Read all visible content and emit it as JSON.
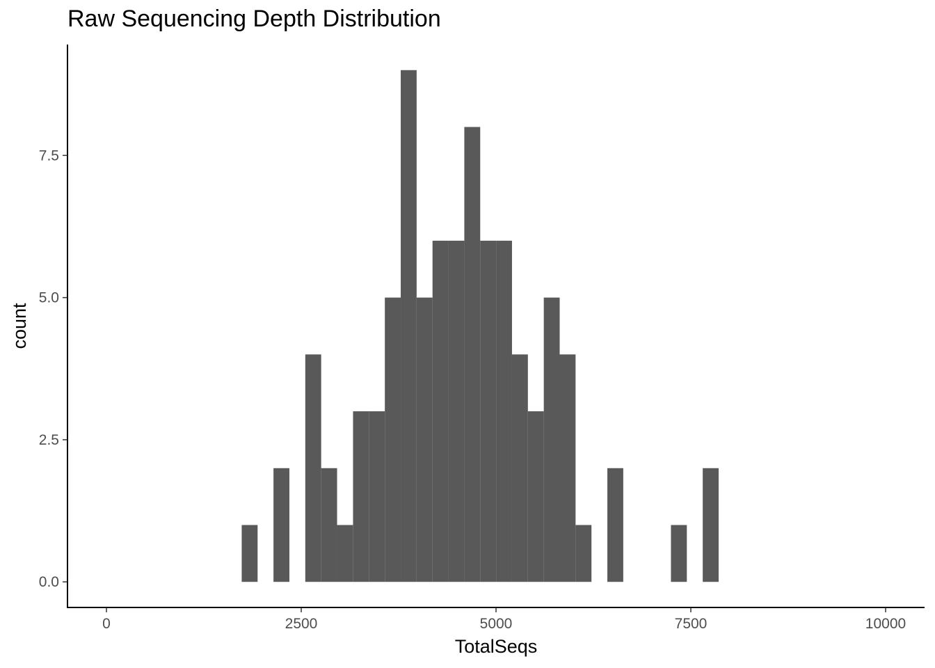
{
  "chart_data": {
    "type": "bar",
    "title": "Raw Sequencing Depth Distribution",
    "xlabel": "TotalSeqs",
    "ylabel": "count",
    "xlim": [
      -500,
      10500
    ],
    "ylim": [
      -0.45,
      9.45
    ],
    "xticks": [
      0,
      2500,
      5000,
      7500,
      10000
    ],
    "xtick_labels": [
      "0",
      "2500",
      "5000",
      "7500",
      "10000"
    ],
    "yticks": [
      0,
      2.5,
      5,
      7.5
    ],
    "ytick_labels": [
      "0.0",
      "2.5",
      "5.0",
      "7.5"
    ],
    "bin_width": 204,
    "bin_centers": [
      1838,
      2042,
      2246,
      2450,
      2654,
      2858,
      3062,
      3267,
      3471,
      3675,
      3879,
      4083,
      4287,
      4491,
      4695,
      4899,
      5103,
      5307,
      5511,
      5715,
      5919,
      6123,
      6327,
      6531,
      6735,
      6939,
      7143,
      7347,
      7551,
      7755
    ],
    "values": [
      1,
      0,
      2,
      0,
      4,
      2,
      1,
      3,
      3,
      5,
      9,
      5,
      6,
      6,
      8,
      6,
      6,
      4,
      3,
      5,
      4,
      1,
      0,
      2,
      0,
      0,
      0,
      1,
      0,
      2
    ],
    "bar_color": "#595959",
    "grid": false,
    "legend": "none"
  }
}
